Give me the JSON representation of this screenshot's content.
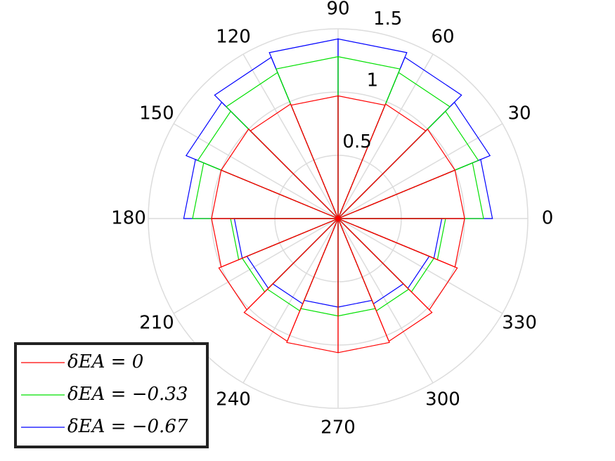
{
  "chart_data": {
    "type": "polar-histogram",
    "bins": [
      0,
      22.5,
      45,
      67.5,
      90,
      112.5,
      135,
      157.5,
      180,
      202.5,
      225,
      247.5,
      270,
      292.5,
      315,
      337.5,
      360
    ],
    "series": [
      {
        "name": "δEA = 0",
        "color": "#ff0000",
        "values": [
          1.0,
          1.0,
          0.98,
          0.97,
          0.97,
          0.98,
          1.0,
          1.0,
          1.0,
          1.02,
          1.05,
          1.06,
          1.06,
          1.05,
          1.02,
          1.0
        ]
      },
      {
        "name": "δEA = −0.33",
        "color": "#00e000",
        "values": [
          1.15,
          1.2,
          1.25,
          1.28,
          1.28,
          1.25,
          1.2,
          1.15,
          0.85,
          0.82,
          0.79,
          0.77,
          0.77,
          0.79,
          0.82,
          0.85
        ]
      },
      {
        "name": "δEA = −0.67",
        "color": "#0000ff",
        "values": [
          1.22,
          1.3,
          1.38,
          1.42,
          1.42,
          1.38,
          1.3,
          1.22,
          0.82,
          0.78,
          0.73,
          0.7,
          0.7,
          0.73,
          0.78,
          0.82
        ]
      }
    ],
    "rlim": [
      0,
      1.5
    ],
    "rticks": [
      0.5,
      1,
      1.5
    ],
    "thetaticks": [
      0,
      30,
      60,
      90,
      120,
      150,
      180,
      210,
      240,
      270,
      300,
      330
    ],
    "grid": true,
    "legend": "lower left"
  }
}
